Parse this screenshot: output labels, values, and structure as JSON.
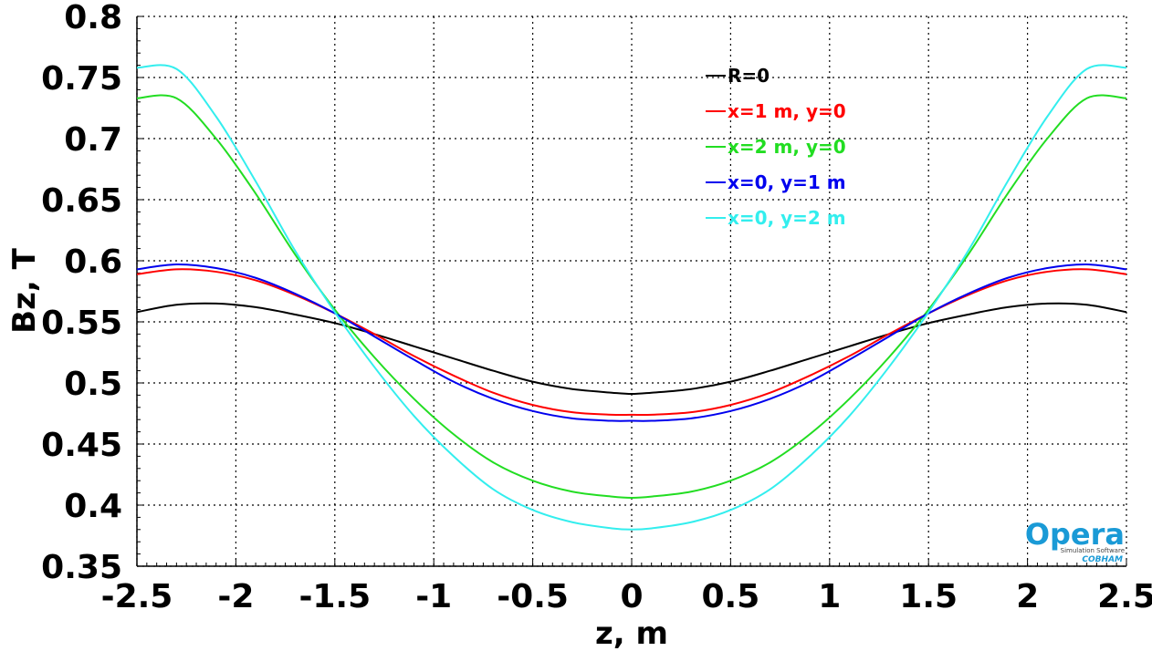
{
  "chart_data": {
    "type": "line",
    "xlabel": "z, m",
    "ylabel": "Bz, T",
    "xlim": [
      -2.5,
      2.5
    ],
    "ylim": [
      0.35,
      0.8
    ],
    "x_ticks": [
      "-2.5",
      "-2",
      "-1.5",
      "-1",
      "-0.5",
      "0",
      "0.5",
      "1",
      "1.5",
      "2",
      "2.5"
    ],
    "y_ticks": [
      "0.35",
      "0.4",
      "0.45",
      "0.5",
      "0.55",
      "0.6",
      "0.65",
      "0.7",
      "0.75",
      "0.8"
    ],
    "grid": true,
    "legend_position": "top-center",
    "x": [
      -2.5,
      -2.3,
      -2.1,
      -1.9,
      -1.7,
      -1.5,
      -1.3,
      -1.1,
      -0.9,
      -0.7,
      -0.5,
      -0.3,
      -0.1,
      0,
      0.1,
      0.3,
      0.5,
      0.7,
      0.9,
      1.1,
      1.3,
      1.5,
      1.7,
      1.9,
      2.1,
      2.3,
      2.5
    ],
    "series": [
      {
        "name": "R=0",
        "color": "#000000",
        "values": [
          0.558,
          0.564,
          0.565,
          0.562,
          0.556,
          0.549,
          0.54,
          0.53,
          0.52,
          0.51,
          0.501,
          0.495,
          0.492,
          0.491,
          0.492,
          0.495,
          0.501,
          0.51,
          0.52,
          0.53,
          0.54,
          0.549,
          0.556,
          0.562,
          0.565,
          0.564,
          0.558
        ]
      },
      {
        "name": "x=1 m, y=0",
        "color": "#ff0000",
        "values": [
          0.589,
          0.593,
          0.591,
          0.584,
          0.572,
          0.557,
          0.54,
          0.522,
          0.506,
          0.492,
          0.482,
          0.476,
          0.474,
          0.474,
          0.474,
          0.476,
          0.482,
          0.492,
          0.506,
          0.522,
          0.54,
          0.557,
          0.572,
          0.584,
          0.591,
          0.593,
          0.589
        ]
      },
      {
        "name": "x=2 m, y=0",
        "color": "#22dd22",
        "values": [
          0.733,
          0.733,
          0.7,
          0.655,
          0.605,
          0.56,
          0.521,
          0.487,
          0.458,
          0.435,
          0.42,
          0.411,
          0.407,
          0.406,
          0.407,
          0.411,
          0.42,
          0.435,
          0.458,
          0.487,
          0.521,
          0.56,
          0.605,
          0.655,
          0.7,
          0.733,
          0.733
        ]
      },
      {
        "name": "x=0,  y=1 m",
        "color": "#0000ee",
        "values": [
          0.593,
          0.597,
          0.594,
          0.586,
          0.573,
          0.557,
          0.538,
          0.519,
          0.501,
          0.487,
          0.477,
          0.471,
          0.469,
          0.469,
          0.469,
          0.471,
          0.477,
          0.487,
          0.501,
          0.519,
          0.538,
          0.557,
          0.573,
          0.586,
          0.594,
          0.597,
          0.593
        ]
      },
      {
        "name": "x=0,  y=2 m",
        "color": "#33eeee",
        "values": [
          0.758,
          0.757,
          0.718,
          0.665,
          0.608,
          0.558,
          0.513,
          0.473,
          0.44,
          0.413,
          0.396,
          0.386,
          0.381,
          0.38,
          0.381,
          0.386,
          0.396,
          0.413,
          0.44,
          0.473,
          0.513,
          0.558,
          0.608,
          0.665,
          0.718,
          0.757,
          0.758
        ]
      }
    ]
  },
  "logo": {
    "name": "Opera",
    "subtitle": "Simulation Software",
    "brand": "COBHAM",
    "color": "#1a9ad6"
  }
}
